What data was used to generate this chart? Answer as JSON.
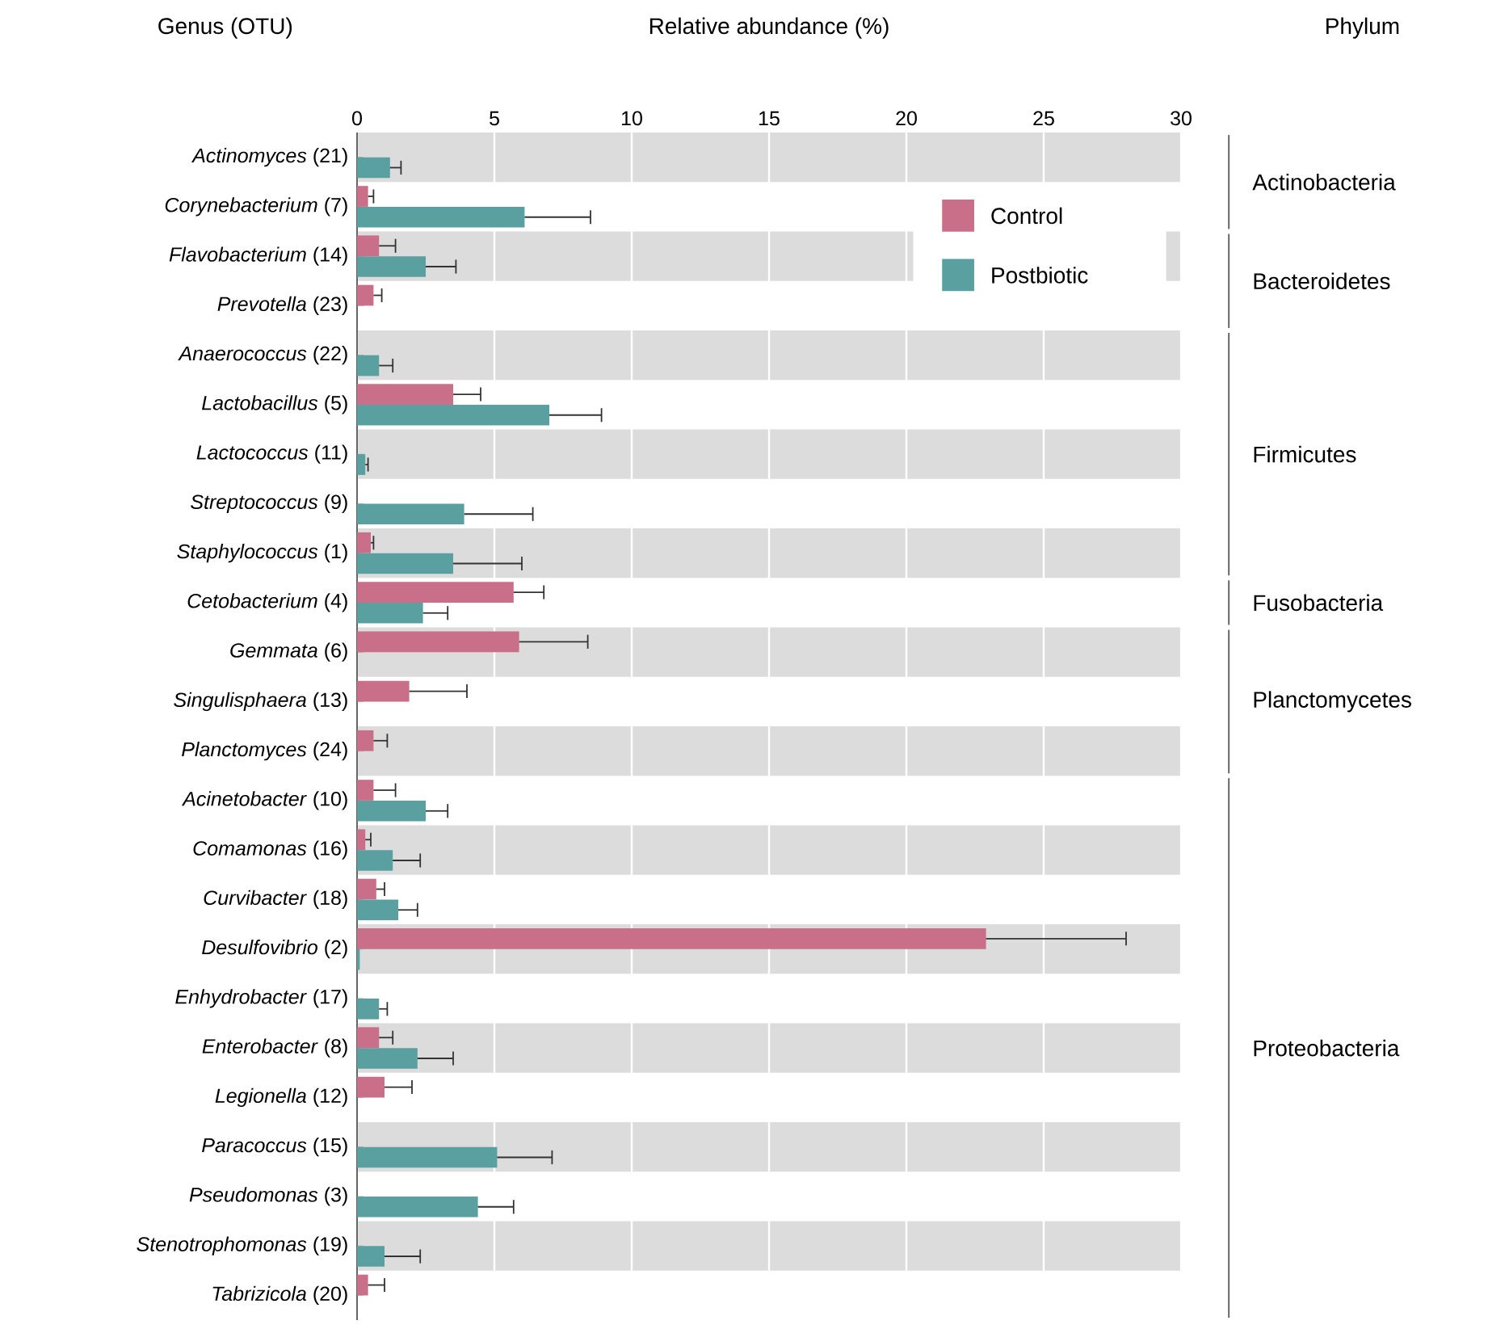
{
  "chart_data": {
    "type": "bar",
    "orientation": "horizontal",
    "xlabel": "Relative abundance (%)",
    "ylabel": "Genus (OTU)",
    "categories": [
      "*Actinomyces* (21)",
      "*Corynebacterium* (7)",
      "*Flavobacterium* (14)",
      "*Prevotella* (23)",
      "*Anaerococcus* (22)",
      "*Lactobacillus* (5)",
      "*Lactococcus* (11)",
      "*Streptococcus* (9)",
      "*Staphylococcus* (1)",
      "*Cetobacterium* (4)",
      "*Gemmata* (6)",
      "*Singulisphaera* (13)",
      "*Planctomyces* (24)",
      "*Acinetobacter* (10)",
      "*Comamonas* (16)",
      "*Curvibacter* (18)",
      "*Desulfovibrio* (2)",
      "*Enhydrobacter* (17)",
      "*Enterobacter* (8)",
      "*Legionella* (12)",
      "*Paracoccus* (15)",
      "*Pseudomonas* (3)",
      "*Stenotrophomonas* (19)",
      "*Tabrizicola* (20)"
    ],
    "series": [
      {
        "name": "Control",
        "color": "#c96f8a",
        "values": [
          null,
          0.4,
          0.8,
          0.6,
          null,
          3.5,
          null,
          null,
          0.5,
          5.7,
          5.9,
          1.9,
          0.6,
          0.6,
          0.3,
          0.7,
          22.9,
          null,
          0.8,
          1.0,
          null,
          null,
          null,
          0.4
        ],
        "errors": [
          null,
          [
            0.4,
            0.6
          ],
          [
            0.8,
            1.4
          ],
          [
            0.6,
            0.9
          ],
          null,
          [
            3.5,
            4.5
          ],
          null,
          null,
          [
            0.5,
            0.6
          ],
          [
            5.7,
            6.8
          ],
          [
            5.9,
            8.4
          ],
          [
            1.9,
            4.0
          ],
          [
            0.6,
            1.1
          ],
          [
            0.6,
            1.4
          ],
          [
            0.3,
            0.5
          ],
          [
            0.7,
            1.0
          ],
          [
            22.9,
            28.0
          ],
          null,
          [
            0.8,
            1.3
          ],
          [
            1.0,
            2.0
          ],
          null,
          null,
          null,
          [
            0.4,
            1.0
          ]
        ]
      },
      {
        "name": "Postbiotic",
        "color": "#5aa0a0",
        "values": [
          1.2,
          6.1,
          2.5,
          null,
          0.8,
          7.0,
          0.3,
          3.9,
          3.5,
          2.4,
          null,
          null,
          null,
          2.5,
          1.3,
          1.5,
          0.1,
          0.8,
          2.2,
          null,
          5.1,
          4.4,
          1.0,
          null
        ],
        "errors": [
          [
            1.2,
            1.6
          ],
          [
            6.1,
            8.5
          ],
          [
            2.5,
            3.6
          ],
          null,
          [
            0.8,
            1.3
          ],
          [
            7.0,
            8.9
          ],
          [
            0.3,
            0.4
          ],
          [
            3.9,
            6.4
          ],
          [
            3.5,
            6.0
          ],
          [
            2.4,
            3.3
          ],
          null,
          null,
          null,
          [
            2.5,
            3.3
          ],
          [
            1.3,
            2.3
          ],
          [
            1.5,
            2.2
          ],
          null,
          [
            0.8,
            1.1
          ],
          [
            2.2,
            3.5
          ],
          null,
          [
            5.1,
            7.1
          ],
          [
            4.4,
            5.7
          ],
          [
            1.0,
            2.3
          ],
          null
        ]
      }
    ],
    "xlim": [
      0,
      30
    ],
    "xticks": [
      0,
      5,
      10,
      15,
      20,
      25,
      30
    ],
    "grid": "x",
    "legend": "top right",
    "annotations": [
      "Phylum",
      "Actinobacteria",
      "Bacteroidetes",
      "Firmicutes",
      "Fusobacteria",
      "Planctomycetes",
      "Proteobacteria"
    ]
  }
}
